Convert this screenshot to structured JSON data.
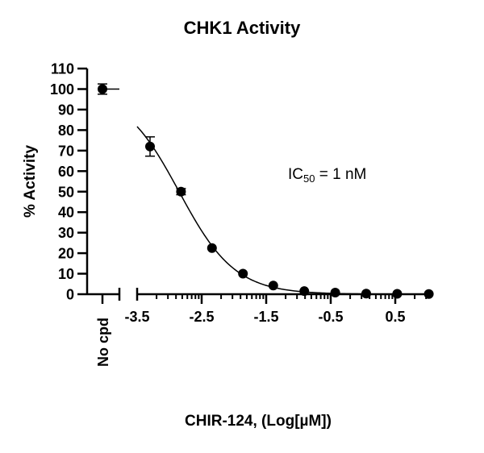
{
  "chart_data": {
    "type": "scatter",
    "title": "CHK1 Activity",
    "xlabel": "CHIR-124, (Log[µM])",
    "ylabel": "% Activity",
    "ylim": [
      0,
      110
    ],
    "yticks": [
      0,
      10,
      20,
      30,
      40,
      50,
      60,
      70,
      80,
      90,
      100,
      110
    ],
    "xlim": [
      -3.5,
      1.02
    ],
    "xticks": [
      -3.5,
      -2.5,
      -1.5,
      -0.5,
      0.5
    ],
    "xtick_labels": [
      "-3.5",
      "-2.5",
      "-1.5",
      "-0.5",
      "0.5"
    ],
    "x_scale_note": "log-style minor ticks between major ticks",
    "control": {
      "label": "No cpd",
      "y": 100,
      "err": 2.5
    },
    "series": [
      {
        "name": "CHIR-124",
        "x": [
          -3.3,
          -2.82,
          -2.34,
          -1.86,
          -1.39,
          -0.91,
          -0.43,
          0.05,
          0.53,
          1.02
        ],
        "y": [
          72,
          50,
          22.5,
          10,
          4.2,
          1.5,
          0.8,
          0.3,
          0.2,
          0.1
        ],
        "err": [
          4.7,
          1.5,
          0,
          0,
          0,
          0,
          0,
          0,
          0,
          0
        ]
      }
    ],
    "fit": {
      "model": "4PL",
      "top": 100,
      "bottom": 0,
      "logIC50": -2.85,
      "hill": 1.0,
      "x_start": -3.5,
      "x_end": 1.02
    },
    "annotations": [
      {
        "text_main": "IC",
        "text_sub": "50",
        "text_rest": " = 1 nM"
      }
    ],
    "grid": false,
    "legend": null
  }
}
